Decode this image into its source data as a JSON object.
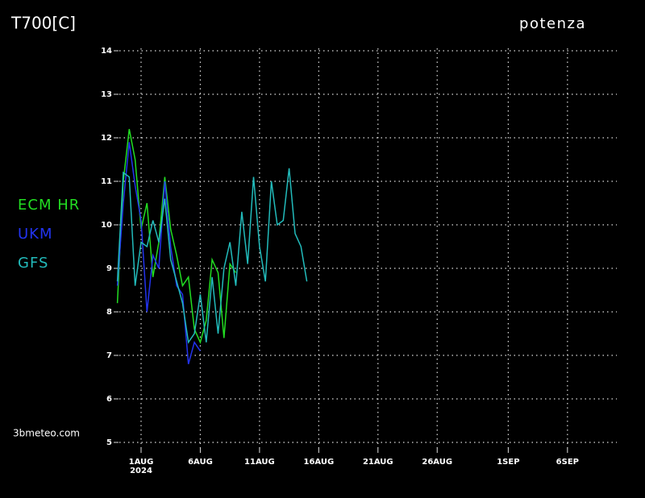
{
  "chart_data": {
    "type": "line",
    "title": "T700[C]",
    "subtitle": "potenza",
    "credit": "3bmeteo.com",
    "xtick_year": "2024",
    "x": [
      -2,
      -1.5,
      -1,
      -0.5,
      0,
      0.5,
      1,
      1.5,
      2,
      2.5,
      3,
      3.5,
      4,
      4.5,
      5,
      5.5,
      6,
      6.5,
      7,
      7.5,
      8,
      8.5,
      9,
      9.5,
      10,
      10.5,
      11,
      11.5,
      12,
      12.5,
      13,
      13.5,
      14
    ],
    "series": [
      {
        "name": "ECM HR",
        "color": "#22dd22",
        "values": [
          8.2,
          11.0,
          12.2,
          11.5,
          9.9,
          10.5,
          8.8,
          9.6,
          11.1,
          9.9,
          9.3,
          8.6,
          8.8,
          7.6,
          7.3,
          7.8,
          9.2,
          8.9,
          7.4,
          9.1,
          8.9,
          null,
          null,
          null,
          null,
          null,
          null,
          null,
          null,
          null,
          null,
          null,
          null
        ]
      },
      {
        "name": "UKM",
        "color": "#2233ee",
        "values": [
          8.6,
          10.5,
          11.9,
          10.9,
          10.1,
          8.0,
          9.3,
          9.0,
          11.0,
          9.5,
          8.6,
          8.4,
          6.8,
          7.3,
          7.1,
          null,
          null,
          null,
          null,
          null,
          null,
          null,
          null,
          null,
          null,
          null,
          null,
          null,
          null,
          null,
          null,
          null,
          null
        ]
      },
      {
        "name": "GFS",
        "color": "#22bbbb",
        "values": [
          8.7,
          11.2,
          11.1,
          8.6,
          9.6,
          9.5,
          10.1,
          9.6,
          10.6,
          9.2,
          8.7,
          8.2,
          7.3,
          7.5,
          8.4,
          7.3,
          8.8,
          7.5,
          9.0,
          9.6,
          8.6,
          10.3,
          9.1,
          11.1,
          9.5,
          8.7,
          11.0,
          10.0,
          10.1,
          11.3,
          9.8,
          9.5,
          8.7
        ]
      }
    ],
    "xlim": [
      -2,
      40
    ],
    "xticks": [
      {
        "value": 0,
        "label": "1AUG"
      },
      {
        "value": 5,
        "label": "6AUG"
      },
      {
        "value": 10,
        "label": "11AUG"
      },
      {
        "value": 15,
        "label": "16AUG"
      },
      {
        "value": 20,
        "label": "21AUG"
      },
      {
        "value": 25,
        "label": "26AUG"
      },
      {
        "value": 31,
        "label": "1SEP"
      },
      {
        "value": 36,
        "label": "6SEP"
      }
    ],
    "ylim": [
      5,
      14
    ],
    "yticks": [
      5,
      6,
      7,
      8,
      9,
      10,
      11,
      12,
      13,
      14
    ],
    "grid": true
  }
}
